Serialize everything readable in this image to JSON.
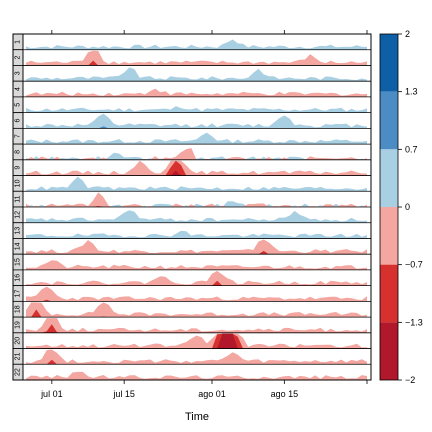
{
  "chart_data": {
    "type": "area",
    "subtype": "horizon",
    "xlabel": "Time",
    "x_ticks": [
      "jul 01",
      "jul 15",
      "ago 01",
      "ago 15"
    ],
    "x_range": [
      "2019-06-26",
      "2019-09-01"
    ],
    "panels": [
      "1",
      "2",
      "3",
      "4",
      "5",
      "6",
      "7",
      "8",
      "9",
      "10",
      "11",
      "12",
      "13",
      "14",
      "15",
      "16",
      "17",
      "18",
      "19",
      "20",
      "21",
      "22"
    ],
    "colorkey": {
      "breaks": [
        -2,
        -1.3,
        -0.7,
        0,
        0.7,
        1.3,
        2
      ],
      "tick_labels": [
        "2",
        "1.3",
        "0.7",
        "0",
        "−0.7",
        "−1.3",
        "−2"
      ],
      "colors": [
        "#b2182b",
        "#d6302f",
        "#f4a6a0",
        "#a9cfe3",
        "#4b8cc4",
        "#0f5fa6"
      ]
    },
    "series": [
      {
        "name": "1",
        "dominant": "blue",
        "peaks": [
          [
            40,
            0.35
          ]
        ]
      },
      {
        "name": "2",
        "dominant": "red",
        "peaks": [
          [
            13,
            -0.8
          ],
          [
            55,
            -0.3
          ]
        ]
      },
      {
        "name": "3",
        "dominant": "blue",
        "peaks": [
          [
            20,
            0.5
          ],
          [
            45,
            0.4
          ]
        ]
      },
      {
        "name": "4",
        "dominant": "red",
        "peaks": [
          [
            25,
            -0.25
          ]
        ]
      },
      {
        "name": "5",
        "dominant": "blue",
        "peaks": [
          [
            30,
            0.15
          ]
        ]
      },
      {
        "name": "6",
        "dominant": "blue",
        "peaks": [
          [
            15,
            0.55
          ],
          [
            50,
            0.5
          ]
        ]
      },
      {
        "name": "7",
        "dominant": "blue",
        "peaks": [
          [
            35,
            0.4
          ]
        ]
      },
      {
        "name": "8",
        "dominant": "mixed",
        "peaks": [
          [
            31,
            -0.6
          ],
          [
            18,
            0.4
          ]
        ]
      },
      {
        "name": "9",
        "dominant": "red",
        "peaks": [
          [
            29,
            -1.5
          ],
          [
            22,
            -0.5
          ]
        ]
      },
      {
        "name": "10",
        "dominant": "blue",
        "peaks": [
          [
            10,
            0.45
          ]
        ]
      },
      {
        "name": "11",
        "dominant": "mixed",
        "peaks": [
          [
            14,
            -0.6
          ],
          [
            40,
            0.2
          ]
        ]
      },
      {
        "name": "12",
        "dominant": "blue",
        "peaks": [
          [
            20,
            0.5
          ],
          [
            52,
            0.4
          ]
        ]
      },
      {
        "name": "13",
        "dominant": "blue",
        "peaks": [
          [
            30,
            0.2
          ]
        ]
      },
      {
        "name": "14",
        "dominant": "red",
        "peaks": [
          [
            12,
            -0.5
          ],
          [
            46,
            -0.7
          ]
        ]
      },
      {
        "name": "15",
        "dominant": "red",
        "peaks": [
          [
            5,
            -0.3
          ]
        ]
      },
      {
        "name": "16",
        "dominant": "red",
        "peaks": [
          [
            37,
            -0.7
          ],
          [
            26,
            -0.3
          ]
        ]
      },
      {
        "name": "17",
        "dominant": "red",
        "peaks": [
          [
            4,
            -0.6
          ]
        ]
      },
      {
        "name": "18",
        "dominant": "red",
        "peaks": [
          [
            2,
            -0.8
          ],
          [
            15,
            -0.6
          ]
        ]
      },
      {
        "name": "19",
        "dominant": "red",
        "peaks": [
          [
            5,
            -0.9
          ]
        ]
      },
      {
        "name": "20",
        "dominant": "red",
        "peaks": [
          [
            38,
            -1.8
          ],
          [
            40,
            -1.6
          ],
          [
            33,
            -0.5
          ]
        ]
      },
      {
        "name": "21",
        "dominant": "red",
        "peaks": [
          [
            5,
            -0.7
          ],
          [
            40,
            -0.4
          ]
        ]
      },
      {
        "name": "22",
        "dominant": "red",
        "peaks": [
          [
            10,
            -0.3
          ]
        ]
      }
    ]
  }
}
